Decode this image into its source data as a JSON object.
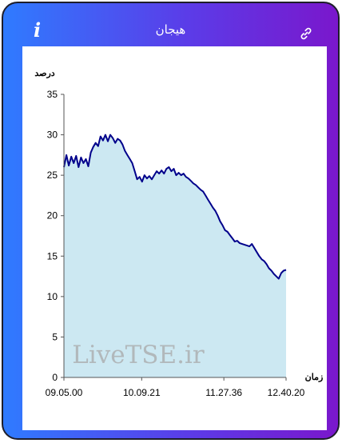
{
  "header": {
    "title": "هیجان",
    "info_icon": "i",
    "link_icon": "link-icon"
  },
  "colors": {
    "frame_start": "#2f7bff",
    "frame_end": "#7a17cc",
    "line": "#00008b",
    "area": "#cce8f2"
  },
  "watermark": "LiveTSE.ir",
  "chart_data": {
    "type": "area",
    "ylabel": "درصد",
    "xlabel": "زمان",
    "ylim": [
      0,
      35
    ],
    "yticks": [
      0,
      5,
      10,
      15,
      20,
      25,
      30,
      35
    ],
    "xticks": [
      "09.05.00",
      "10.09.21",
      "11.27.36",
      "12.40.20"
    ],
    "x_tick_positions": [
      0,
      0.35,
      0.72,
      1.0
    ],
    "grid": false,
    "series": [
      {
        "values": [
          26.0,
          27.5,
          26.2,
          27.3,
          26.5,
          27.4,
          26.0,
          27.2,
          26.5,
          27.0,
          26.1,
          27.8,
          28.5,
          29.0,
          28.6,
          29.8,
          29.3,
          30.0,
          29.2,
          30.0,
          29.6,
          29.0,
          29.5,
          29.3,
          28.8,
          28.0,
          27.5,
          27.0,
          26.5,
          25.5,
          24.5,
          24.8,
          24.2,
          25.0,
          24.6,
          24.9,
          24.5,
          25.0,
          25.5,
          25.2,
          25.6,
          25.2,
          25.8,
          26.0,
          25.5,
          25.8,
          25.0,
          25.3,
          25.0,
          25.2,
          24.8,
          24.6,
          24.3,
          24.0,
          23.8,
          23.5,
          23.2,
          23.0,
          22.5,
          22.0,
          21.5,
          21.0,
          20.6,
          20.0,
          19.3,
          18.8,
          18.2,
          18.0,
          17.6,
          17.2,
          16.8,
          16.9,
          16.6,
          16.5,
          16.4,
          16.3,
          16.2,
          16.5,
          16.0,
          15.5,
          15.0,
          14.6,
          14.4,
          14.0,
          13.5,
          13.2,
          12.8,
          12.5,
          12.2,
          12.9,
          13.2,
          13.3
        ]
      }
    ]
  }
}
